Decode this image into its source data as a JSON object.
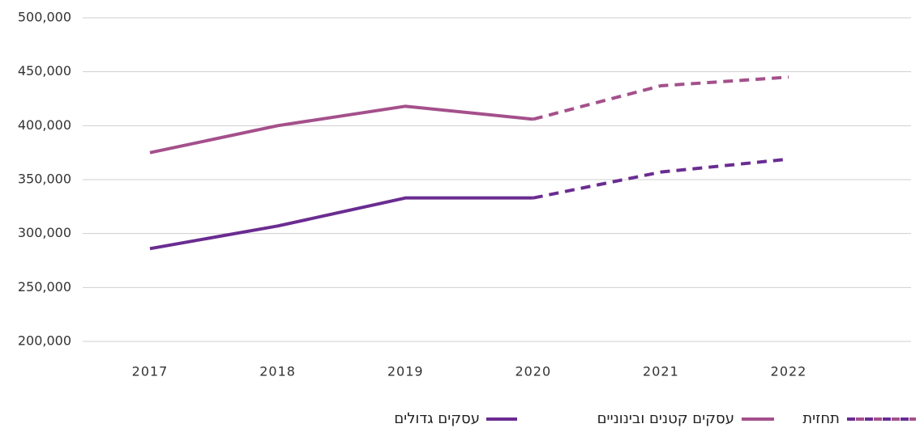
{
  "chart_data": {
    "type": "line",
    "categories": [
      "2017",
      "2018",
      "2019",
      "2020",
      "2021",
      "2022"
    ],
    "series": [
      {
        "name": "עסקים קטנים ובינוניים",
        "color": "#a4508b",
        "values": [
          375000,
          400000,
          418000,
          406000,
          null,
          null
        ],
        "forecast": [
          null,
          null,
          null,
          406000,
          437000,
          445000
        ]
      },
      {
        "name": "עסקים גדולים",
        "color": "#6a2c91",
        "values": [
          286000,
          307000,
          333000,
          333000,
          null,
          null
        ],
        "forecast": [
          null,
          null,
          null,
          333000,
          357000,
          369000
        ]
      }
    ],
    "forecast_label": "תחזית",
    "ylim": [
      200000,
      500000
    ],
    "yticks": [
      {
        "value": 200000,
        "label": "200,000"
      },
      {
        "value": 250000,
        "label": "250,000"
      },
      {
        "value": 300000,
        "label": "300,000"
      },
      {
        "value": 350000,
        "label": "350,000"
      },
      {
        "value": 400000,
        "label": "400,000"
      },
      {
        "value": 450000,
        "label": "450,000"
      },
      {
        "value": 500000,
        "label": "500,000"
      }
    ],
    "grid": true
  }
}
